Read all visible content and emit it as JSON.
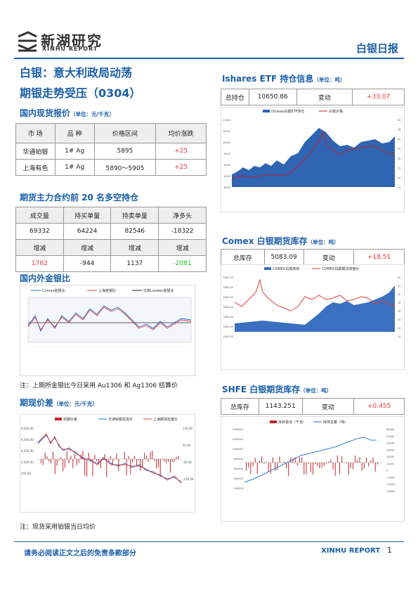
{
  "header": {
    "logo_cn": "新湖研究",
    "logo_en": "XINHU REPORT",
    "doc_type": "白银日报"
  },
  "main_title": {
    "line1": "白银：意大利政局动荡",
    "line2": "期银走势受压（0304）"
  },
  "spot": {
    "title": "国内现货报价",
    "unit": "（单位：元/千克）",
    "headers": [
      "市 场",
      "品 种",
      "价格区间",
      "均价涨跌"
    ],
    "rows": [
      [
        "华通铂银",
        "1# Ag",
        "5895",
        "+25"
      ],
      [
        "上海有色",
        "1# Ag",
        "5890～5905",
        "+25"
      ]
    ]
  },
  "top20": {
    "title": "期货主力合约前 20 名多空持仓",
    "headers": [
      "成交量",
      "持买单量",
      "持卖单量",
      "净多头"
    ],
    "values": [
      "69332",
      "64224",
      "82546",
      "-18322"
    ],
    "change_headers": [
      "增减",
      "增减",
      "增减",
      "增减"
    ],
    "changes": [
      "1702",
      "-944",
      "1137",
      "-2081"
    ]
  },
  "ratio": {
    "title": "国内外金银比",
    "legend": [
      "Comex金银比",
      "上海金银比",
      "伦敦London金银比"
    ],
    "note": "注：上期所金银比今日采用 Au1306 和 Ag1306 结算价",
    "colors": {
      "comex": "#1e6fcc",
      "shanghai": "#e23b3b",
      "london": "#222222"
    }
  },
  "basis": {
    "title": "期现价差",
    "unit": "（单位：元/千克）",
    "legend": [
      "现期价差",
      "华通铂银现货价",
      "上海期货收盘价"
    ],
    "note": "注：现货采用铂银当日均价"
  },
  "etf": {
    "title": "Ishares ETF 持仓信息",
    "unit": "（单位：吨）",
    "cells": [
      "总持仓",
      "10650.86",
      "变动",
      "+33.07"
    ],
    "legend": [
      "iShares白银ETF持仓",
      "白银价格"
    ],
    "y_ticks": [
      "11000",
      "10500",
      "10000",
      "9500",
      "9000",
      "8500",
      "8000"
    ],
    "y2_ticks": [
      "50",
      "45",
      "40",
      "35",
      "30",
      "25",
      "20",
      "15"
    ]
  },
  "comex": {
    "title": "Comex 白银期货库存",
    "unit": "（单位：吨）",
    "cells": [
      "总库存",
      "5083.09",
      "变动",
      "+18.51"
    ],
    "legend": [
      "COMEX白银库存",
      "COMEX白银期货收盘价"
    ],
    "y_ticks": [
      "5500.00",
      "5000.00",
      "4500.00",
      "4000.00",
      "3500.00",
      "3000.00",
      "2500.00"
    ],
    "y2_ticks": [
      "50",
      "45",
      "40",
      "35",
      "30",
      "25",
      "20",
      "15"
    ]
  },
  "shfe": {
    "title": "SHFE 白银期货库存",
    "unit": "（单位：吨）",
    "cells": [
      "总库存",
      "1143.251",
      "变动",
      "+0.455"
    ],
    "legend": [
      "库存变动（千克）",
      "库存总量（吨）"
    ],
    "y_ticks": [
      "1400000",
      "1200000",
      "1000000",
      "800000",
      "600000",
      "400000",
      "200000"
    ],
    "y2_ticks": [
      "60000",
      "50000",
      "40000",
      "30000",
      "20000",
      "10000",
      "0",
      "-10000",
      "-20000",
      "-30000"
    ]
  },
  "footer": {
    "disclaimer": "请务必阅读正文之后的免责条款部分",
    "brand": "XINHU REPORT",
    "page": "1"
  }
}
